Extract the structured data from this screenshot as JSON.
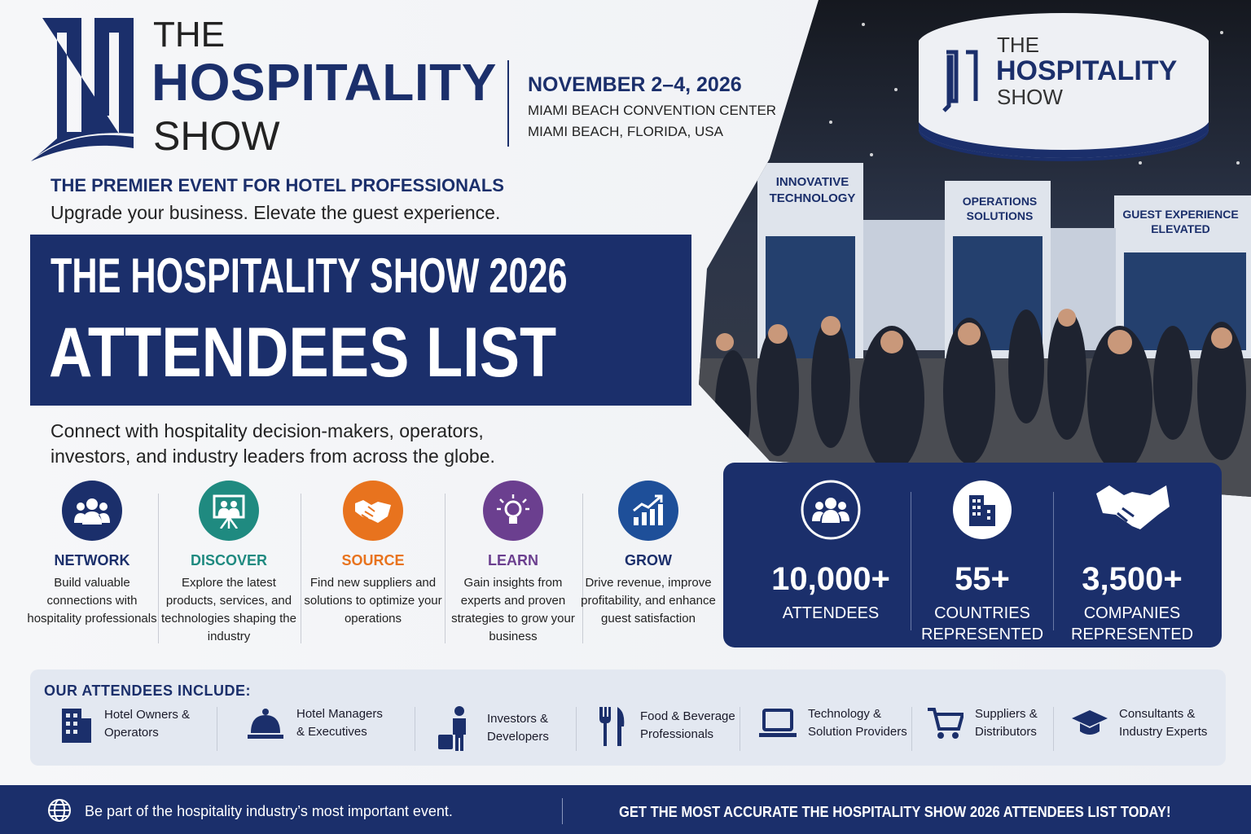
{
  "header": {
    "logo": {
      "line1": "THE",
      "line2": "HOSPITALITY",
      "line3": "SHOW"
    },
    "date": "NOVEMBER 2–4, 2026",
    "venue": "MIAMI BEACH CONVENTION CENTER",
    "location": "MIAMI BEACH, FLORIDA, USA"
  },
  "tagline": {
    "title": "THE PREMIER EVENT FOR HOTEL PROFESSIONALS",
    "subtitle": "Upgrade your business. Elevate the guest experience."
  },
  "banner": {
    "line1": "THE HOSPITALITY SHOW 2026",
    "line2": "ATTENDEES LIST"
  },
  "intro": "Connect with hospitality decision-makers, operators, investors, and industry leaders from across the globe.",
  "features": [
    {
      "title": "NETWORK",
      "text": "Build valuable connections with hospitality professionals"
    },
    {
      "title": "DISCOVER",
      "text": "Explore the latest products, services, and technologies shaping the industry"
    },
    {
      "title": "SOURCE",
      "text": "Find new suppliers and solutions to optimize your operations"
    },
    {
      "title": "LEARN",
      "text": "Gain insights from experts and proven strategies to grow your business"
    },
    {
      "title": "GROW",
      "text": "Drive revenue, improve profitability, and enhance guest satisfaction"
    }
  ],
  "photo": {
    "sign": {
      "line1": "THE",
      "line2": "HOSPITALITY",
      "line3": "SHOW"
    },
    "booths": [
      "INNOVATIVE TECHNOLOGY",
      "OPERATIONS SOLUTIONS",
      "GUEST EXPERIENCE ELEVATED"
    ]
  },
  "stats": [
    {
      "value": "10,000+",
      "label": "ATTENDEES"
    },
    {
      "value": "55+",
      "label": "COUNTRIES REPRESENTED"
    },
    {
      "value": "3,500+",
      "label": "COMPANIES REPRESENTED"
    }
  ],
  "attendees": {
    "title": "OUR ATTENDEES INCLUDE:",
    "items": [
      "Hotel Owners & Operators",
      "Hotel Managers & Executives",
      "Investors & Developers",
      "Food & Beverage Professionals",
      "Technology & Solution Providers",
      "Suppliers & Distributors",
      "Consultants & Industry Experts"
    ]
  },
  "footer": {
    "left": "Be part of the hospitality industry’s most important event.",
    "right": "GET THE MOST ACCURATE THE HOSPITALITY SHOW 2026 ATTENDEES LIST TODAY!"
  }
}
